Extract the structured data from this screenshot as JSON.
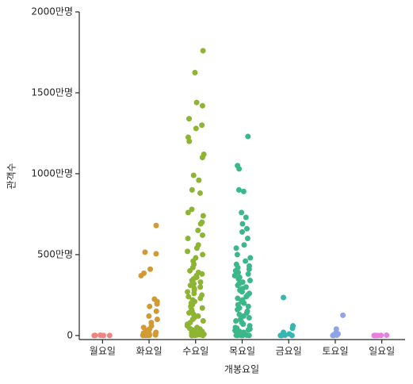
{
  "chart_data": {
    "type": "strip",
    "x_label": "개봉요일",
    "y_label": "관객수",
    "categories": [
      "월요일",
      "화요일",
      "수요일",
      "목요일",
      "금요일",
      "토요일",
      "일요일"
    ],
    "colors": [
      "#f0827f",
      "#d29a32",
      "#8db533",
      "#3bb88a",
      "#37b5b0",
      "#8fa3e8",
      "#e87ee0"
    ],
    "values": [
      [
        0,
        0,
        1,
        0,
        2
      ],
      [
        680,
        515,
        505,
        410,
        385,
        370,
        225,
        210,
        195,
        180,
        150,
        120,
        100,
        80,
        60,
        50,
        40,
        30,
        20,
        15,
        10,
        5,
        2,
        1,
        0,
        0,
        0,
        3,
        8,
        12
      ],
      [
        1760,
        1625,
        1440,
        1420,
        1340,
        1300,
        1280,
        1225,
        1200,
        1120,
        1100,
        990,
        960,
        900,
        880,
        780,
        760,
        740,
        700,
        690,
        650,
        620,
        600,
        560,
        540,
        520,
        500,
        480,
        460,
        440,
        420,
        400,
        390,
        380,
        370,
        360,
        350,
        340,
        330,
        320,
        310,
        300,
        290,
        280,
        270,
        260,
        250,
        240,
        230,
        220,
        210,
        200,
        190,
        180,
        170,
        160,
        150,
        140,
        130,
        120,
        110,
        100,
        90,
        80,
        70,
        60,
        50,
        45,
        40,
        35,
        30,
        25,
        20,
        15,
        10,
        8,
        5,
        3,
        2,
        1,
        0,
        0,
        0,
        0
      ],
      [
        1230,
        1050,
        1030,
        900,
        890,
        760,
        730,
        690,
        660,
        640,
        600,
        560,
        540,
        500,
        480,
        460,
        440,
        430,
        420,
        410,
        400,
        390,
        380,
        370,
        360,
        350,
        340,
        330,
        320,
        310,
        300,
        290,
        280,
        270,
        260,
        250,
        240,
        230,
        220,
        210,
        200,
        190,
        180,
        170,
        160,
        150,
        140,
        130,
        120,
        110,
        100,
        90,
        80,
        70,
        60,
        50,
        45,
        40,
        35,
        30,
        25,
        20,
        15,
        10,
        8,
        5,
        3,
        2,
        1,
        0,
        0,
        0,
        0
      ],
      [
        235,
        60,
        45,
        20,
        10,
        5,
        2,
        0,
        0,
        0
      ],
      [
        125,
        40,
        20,
        10,
        5,
        2,
        0,
        0
      ],
      [
        0,
        0,
        1,
        0,
        0,
        2
      ]
    ],
    "ylim": [
      -25,
      2000
    ],
    "yticks": [
      0,
      {
        "value": 500,
        "label": "500만명"
      },
      {
        "value": 1000,
        "label": "1000만명"
      },
      {
        "value": 1500,
        "label": "1500만명"
      },
      {
        "value": 2000,
        "label": "2000만명"
      }
    ]
  }
}
